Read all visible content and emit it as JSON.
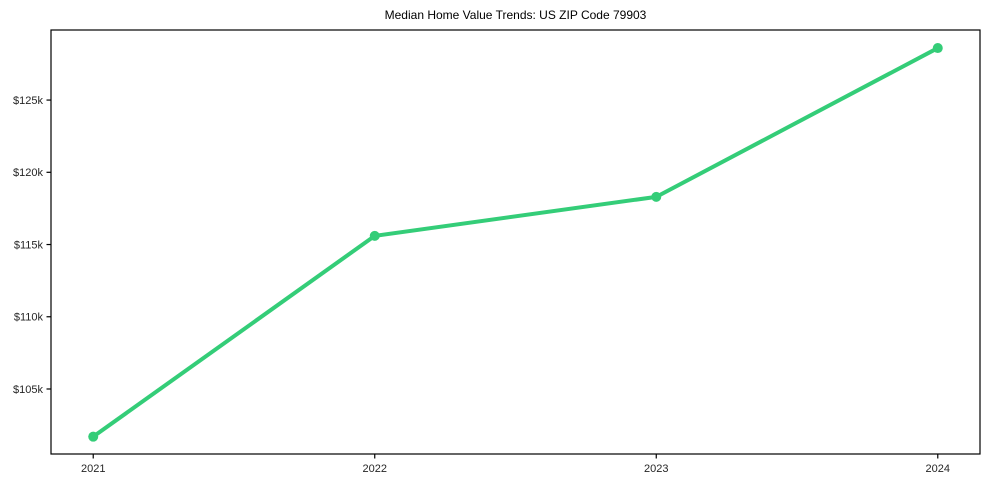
{
  "chart_data": {
    "type": "line",
    "title": "Median Home Value Trends: US ZIP Code 79903",
    "xlabel": "",
    "ylabel": "",
    "x": [
      2021,
      2022,
      2023,
      2024
    ],
    "categories": [
      "2021",
      "2022",
      "2023",
      "2024"
    ],
    "series": [
      {
        "name": "Median Home Value",
        "values": [
          101700,
          115600,
          118300,
          128600
        ]
      }
    ],
    "values": [
      101700,
      115600,
      118300,
      128600
    ],
    "xticks": [
      {
        "value": 2021,
        "label": "2021"
      },
      {
        "value": 2022,
        "label": "2022"
      },
      {
        "value": 2023,
        "label": "2023"
      },
      {
        "value": 2024,
        "label": "2024"
      }
    ],
    "yticks": [
      {
        "value": 105000,
        "label": "$105k"
      },
      {
        "value": 110000,
        "label": "$110k"
      },
      {
        "value": 115000,
        "label": "$115k"
      },
      {
        "value": 120000,
        "label": "$120k"
      },
      {
        "value": 125000,
        "label": "$125k"
      }
    ],
    "xlim": [
      2020.85,
      2024.15
    ],
    "ylim": [
      100500,
      129850
    ],
    "grid": false,
    "legend_position": "none",
    "line_color": "#34cd78",
    "marker": "circle",
    "spine_color": "#000000",
    "tick_label_color": "#262626",
    "background_color": "#ffffff"
  }
}
